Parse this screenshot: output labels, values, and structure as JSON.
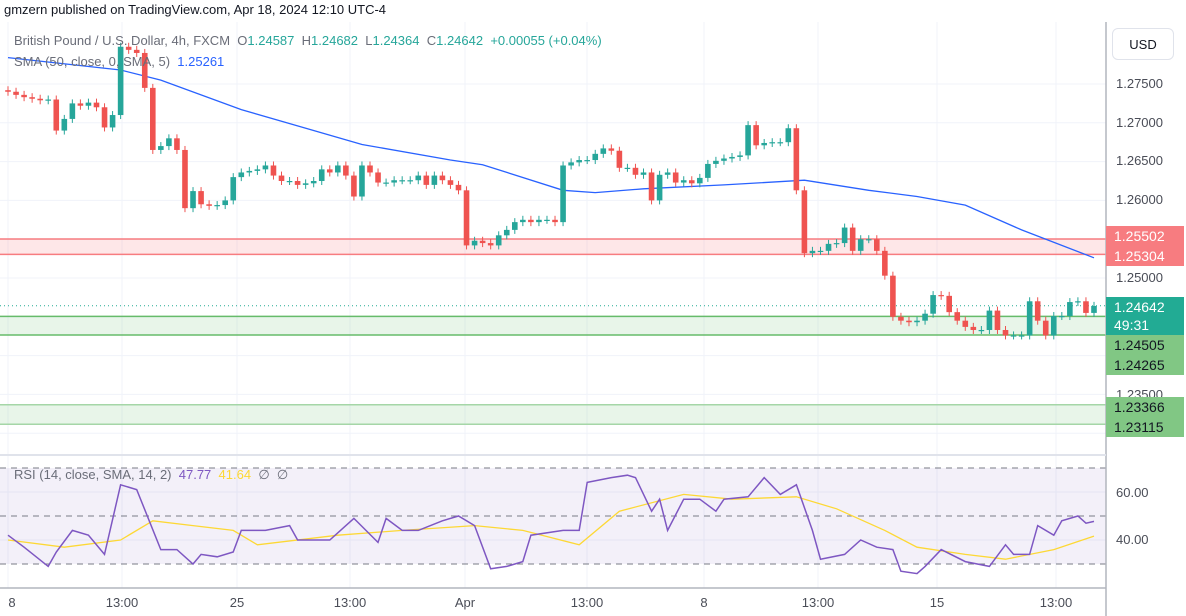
{
  "header": {
    "published": "gmzern published on TradingView.com, Apr 18, 2024 12:10 UTC-4"
  },
  "legend": {
    "symbol": "British Pound / U.S. Dollar, 4h, FXCM",
    "o_label": "O",
    "o": "1.24587",
    "h_label": "H",
    "h": "1.24682",
    "l_label": "L",
    "l": "1.24364",
    "c_label": "C",
    "c": "1.24642",
    "change": "+0.00055 (+0.04%)",
    "sma_label": "SMA (50, close, 0, SMA, 5)",
    "sma_value": "1.25261",
    "rsi_label": "RSI (14, close, SMA, 14, 2)",
    "rsi_value": "47.77",
    "rsi_ma_value": "41.64",
    "rsi_extra1": "∅",
    "rsi_extra2": "∅"
  },
  "price_axis": {
    "currency": "USD",
    "ticks": [
      "1.27500",
      "1.27000",
      "1.26500",
      "1.26000",
      "1.25000",
      "1.23500"
    ],
    "rsi_ticks": [
      "60.00",
      "40.00"
    ]
  },
  "levels": {
    "resistance": {
      "top": "1.25502",
      "bottom": "1.25304",
      "color": "#f77c80"
    },
    "current": {
      "price": "1.24642",
      "countdown": "49:31",
      "color": "#22ab94"
    },
    "support1": {
      "top": "1.24505",
      "bottom": "1.24265",
      "color": "#81c784"
    },
    "support2": {
      "top": "1.23366",
      "bottom": "1.23115",
      "color": "#81c784"
    }
  },
  "time_axis": [
    "8",
    "13:00",
    "25",
    "13:00",
    "Apr",
    "13:00",
    "8",
    "13:00",
    "15",
    "13:00"
  ],
  "chart_data": {
    "type": "candlestick",
    "timeframe": "4h",
    "y_range": [
      1.23,
      1.281
    ],
    "colors": {
      "up": "#26a69a",
      "down": "#ef5350",
      "sma": "#2962ff",
      "rsi": "#7e57c2",
      "rsi_ma": "#fdd835"
    },
    "first_open": 1.2742,
    "closes": [
      1.274,
      1.2736,
      1.2733,
      1.2731,
      1.2729,
      1.273,
      1.269,
      1.2705,
      1.2725,
      1.2722,
      1.2726,
      1.272,
      1.2694,
      1.271,
      1.2798,
      1.2794,
      1.279,
      1.2745,
      1.2665,
      1.267,
      1.268,
      1.2665,
      1.259,
      1.2612,
      1.2595,
      1.2593,
      1.2594,
      1.26,
      1.263,
      1.2636,
      1.2638,
      1.264,
      1.2645,
      1.2632,
      1.2625,
      1.2625,
      1.262,
      1.2622,
      1.2625,
      1.264,
      1.2636,
      1.2645,
      1.2632,
      1.2605,
      1.2645,
      1.2636,
      1.2623,
      1.2623,
      1.2626,
      1.2626,
      1.2626,
      1.2632,
      1.262,
      1.2632,
      1.2626,
      1.262,
      1.2613,
      1.2542,
      1.2548,
      1.2545,
      1.2542,
      1.2555,
      1.2562,
      1.2572,
      1.2575,
      1.2572,
      1.2575,
      1.2575,
      1.2572,
      1.2645,
      1.2649,
      1.2652,
      1.2652,
      1.266,
      1.2667,
      1.2664,
      1.2642,
      1.2642,
      1.2633,
      1.2636,
      1.26,
      1.2633,
      1.2636,
      1.2623,
      1.2626,
      1.2622,
      1.2629,
      1.2647,
      1.2651,
      1.2654,
      1.2656,
      1.2658,
      1.2697,
      1.2671,
      1.2674,
      1.2675,
      1.2675,
      1.2693,
      1.2613,
      1.2532,
      1.2535,
      1.2535,
      1.2544,
      1.2545,
      1.2565,
      1.2535,
      1.255,
      1.255,
      1.2535,
      1.2503,
      1.245,
      1.2445,
      1.2443,
      1.2445,
      1.2454,
      1.2478,
      1.2477,
      1.2456,
      1.2445,
      1.2437,
      1.2433,
      1.2433,
      1.2458,
      1.2433,
      1.2426,
      1.2426,
      1.2426,
      1.247,
      1.2445,
      1.2426,
      1.2451,
      1.2451,
      1.2469,
      1.247,
      1.2455,
      1.2464
    ],
    "sma": [
      [
        0,
        1.2784
      ],
      [
        14,
        1.2768
      ],
      [
        19,
        1.2755
      ],
      [
        29,
        1.2717
      ],
      [
        44,
        1.2672
      ],
      [
        55,
        1.2652
      ],
      [
        59,
        1.2646
      ],
      [
        69,
        1.2613
      ],
      [
        73,
        1.261
      ],
      [
        79,
        1.2615
      ],
      [
        89,
        1.262
      ],
      [
        99,
        1.2626
      ],
      [
        107,
        1.2613
      ],
      [
        113,
        1.2605
      ],
      [
        119,
        1.2594
      ],
      [
        126,
        1.2562
      ],
      [
        135,
        1.2526
      ]
    ],
    "rsi": {
      "levels": [
        70,
        50,
        30
      ],
      "values": [
        [
          0,
          42
        ],
        [
          2,
          37
        ],
        [
          5,
          29
        ],
        [
          6,
          35
        ],
        [
          8,
          44
        ],
        [
          10,
          42
        ],
        [
          12,
          34
        ],
        [
          14,
          63
        ],
        [
          16,
          61
        ],
        [
          19,
          36
        ],
        [
          21,
          36
        ],
        [
          23,
          30
        ],
        [
          24,
          34
        ],
        [
          26,
          33
        ],
        [
          28,
          35
        ],
        [
          29,
          44
        ],
        [
          32,
          44
        ],
        [
          35,
          46
        ],
        [
          36,
          40
        ],
        [
          40,
          40
        ],
        [
          42,
          46
        ],
        [
          43,
          49
        ],
        [
          46,
          39
        ],
        [
          47,
          49
        ],
        [
          49,
          44
        ],
        [
          51,
          44
        ],
        [
          54,
          48
        ],
        [
          56,
          50
        ],
        [
          58,
          46
        ],
        [
          60,
          28
        ],
        [
          62,
          29
        ],
        [
          64,
          31
        ],
        [
          65,
          42
        ],
        [
          69,
          44
        ],
        [
          71,
          44
        ],
        [
          72,
          64
        ],
        [
          75,
          66
        ],
        [
          77,
          67
        ],
        [
          78,
          66
        ],
        [
          80,
          52
        ],
        [
          81,
          57
        ],
        [
          82,
          44
        ],
        [
          84,
          57
        ],
        [
          86,
          57
        ],
        [
          88,
          52
        ],
        [
          89,
          57
        ],
        [
          92,
          58
        ],
        [
          94,
          66
        ],
        [
          96,
          59
        ],
        [
          98,
          63
        ],
        [
          100,
          44
        ],
        [
          101,
          32
        ],
        [
          104,
          34
        ],
        [
          106,
          40
        ],
        [
          108,
          37
        ],
        [
          110,
          36
        ],
        [
          111,
          27
        ],
        [
          113,
          26
        ],
        [
          114,
          29
        ],
        [
          116,
          36
        ],
        [
          119,
          31
        ],
        [
          122,
          29
        ],
        [
          124,
          38
        ],
        [
          125,
          34
        ],
        [
          127,
          34
        ],
        [
          128,
          46
        ],
        [
          130,
          42
        ],
        [
          131,
          48
        ],
        [
          133,
          50
        ],
        [
          134,
          47
        ],
        [
          135,
          47.77
        ]
      ],
      "ma": [
        [
          0,
          40
        ],
        [
          7,
          37
        ],
        [
          14,
          40
        ],
        [
          18,
          48
        ],
        [
          23,
          46
        ],
        [
          28,
          44
        ],
        [
          31,
          38
        ],
        [
          41,
          42
        ],
        [
          49,
          44
        ],
        [
          58,
          46
        ],
        [
          64,
          44
        ],
        [
          71,
          38
        ],
        [
          76,
          52
        ],
        [
          84,
          59
        ],
        [
          90,
          57
        ],
        [
          98,
          58
        ],
        [
          103,
          53
        ],
        [
          109,
          44
        ],
        [
          113,
          37
        ],
        [
          119,
          34
        ],
        [
          124,
          32
        ],
        [
          130,
          36
        ],
        [
          135,
          41.64
        ]
      ]
    }
  }
}
